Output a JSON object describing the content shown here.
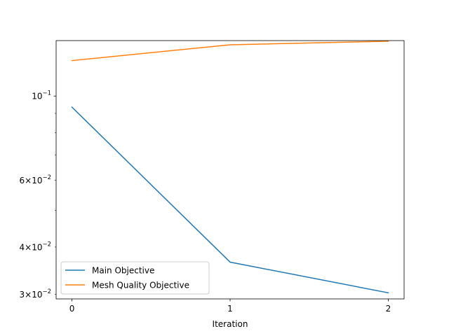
{
  "chart_data": {
    "type": "line",
    "title": "",
    "xlabel": "Iteration",
    "ylabel": "",
    "x": [
      0,
      1,
      2
    ],
    "xticks": [
      0,
      1,
      2
    ],
    "xlim": [
      -0.1,
      2.1
    ],
    "yscale": "log",
    "ylim": [
      0.0292,
      0.14
    ],
    "yticks_major": [
      {
        "value": 0.1,
        "mantissa": "",
        "exponent": "−1"
      }
    ],
    "yticks_minor_labeled": [
      {
        "value": 0.03,
        "mantissa": "3",
        "exponent": "−2"
      },
      {
        "value": 0.04,
        "mantissa": "4",
        "exponent": "−2"
      },
      {
        "value": 0.06,
        "mantissa": "6",
        "exponent": "−2"
      }
    ],
    "yticks_minor_unlabeled": [
      0.05,
      0.07,
      0.08,
      0.09
    ],
    "grid": false,
    "legend_position": "lower-left",
    "series": [
      {
        "name": "Main Objective",
        "color": "#1f77b4",
        "values": [
          0.0935,
          0.0365,
          0.0303
        ]
      },
      {
        "name": "Mesh Quality Objective",
        "color": "#ff7f0e",
        "values": [
          0.124,
          0.1365,
          0.1395
        ]
      }
    ]
  }
}
